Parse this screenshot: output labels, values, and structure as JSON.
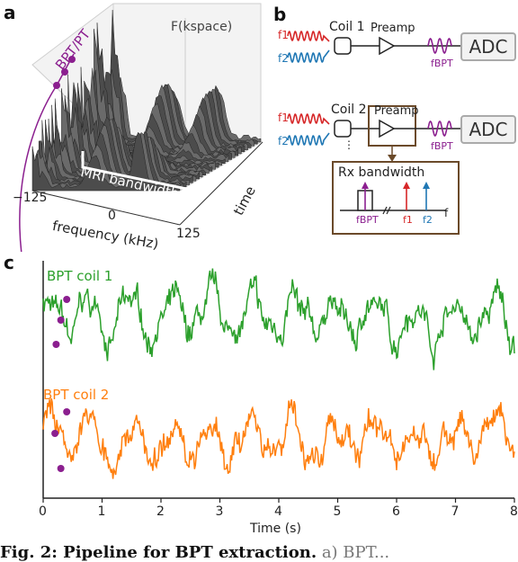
{
  "panels": {
    "a": "a",
    "b": "b",
    "c": "c"
  },
  "panel_a": {
    "marker_label": "BPT/PT",
    "spectrum_title": "F(kspace)",
    "bandwidth_label": "MRI bandwidth",
    "x_ticks": [
      "−125",
      "0",
      "125"
    ],
    "xlabel": "frequency (kHz)",
    "depth_label": "time",
    "colors": {
      "marker": "#8b1f8f",
      "surface": "#555555",
      "bandwidth_box": "#ffffff"
    }
  },
  "panel_b": {
    "row1": {
      "f1": "f1",
      "f2": "f2",
      "coil": "Coil 1",
      "preamp": "Preamp",
      "fbpt": "fBPT",
      "adc": "ADC"
    },
    "row2": {
      "f1": "f1",
      "f2": "f2",
      "coil": "Coil 2",
      "preamp": "Preamp",
      "fbpt": "fBPT",
      "adc": "ADC",
      "ellipsis": "⋮"
    },
    "rx": {
      "title": "Rx bandwidth",
      "fbpt": "fBPT",
      "f1": "f1",
      "f2": "f2",
      "f": "f"
    },
    "colors": {
      "f1": "#d62728",
      "f2": "#1f77b4",
      "bpt": "#8b1f8f",
      "rx_border": "#6b4a2a"
    }
  },
  "panel_c": {
    "series1_label": "BPT coil 1",
    "series2_label": "BPT coil 2",
    "x_ticks": [
      "0",
      "1",
      "2",
      "3",
      "4",
      "5",
      "6",
      "7",
      "8"
    ],
    "xlabel": "Time (s)",
    "colors": {
      "series1": "#2ca02c",
      "series2": "#ff7f0e",
      "marker": "#8b1f8f"
    }
  },
  "caption": {
    "bold": "Fig. 2: Pipeline for BPT extraction.",
    "rest": " a) BPT..."
  },
  "chart_data": {
    "type": "line",
    "xlabel": "Time (s)",
    "ylabel": "",
    "xlim": [
      0,
      8
    ],
    "x_ticks": [
      0,
      1,
      2,
      3,
      4,
      5,
      6,
      7,
      8
    ],
    "series": [
      {
        "name": "BPT coil 1",
        "color": "#2ca02c",
        "seed": 7,
        "amp": 1.0
      },
      {
        "name": "BPT coil 2",
        "color": "#ff7f0e",
        "seed": 13,
        "amp": 1.0
      }
    ]
  }
}
